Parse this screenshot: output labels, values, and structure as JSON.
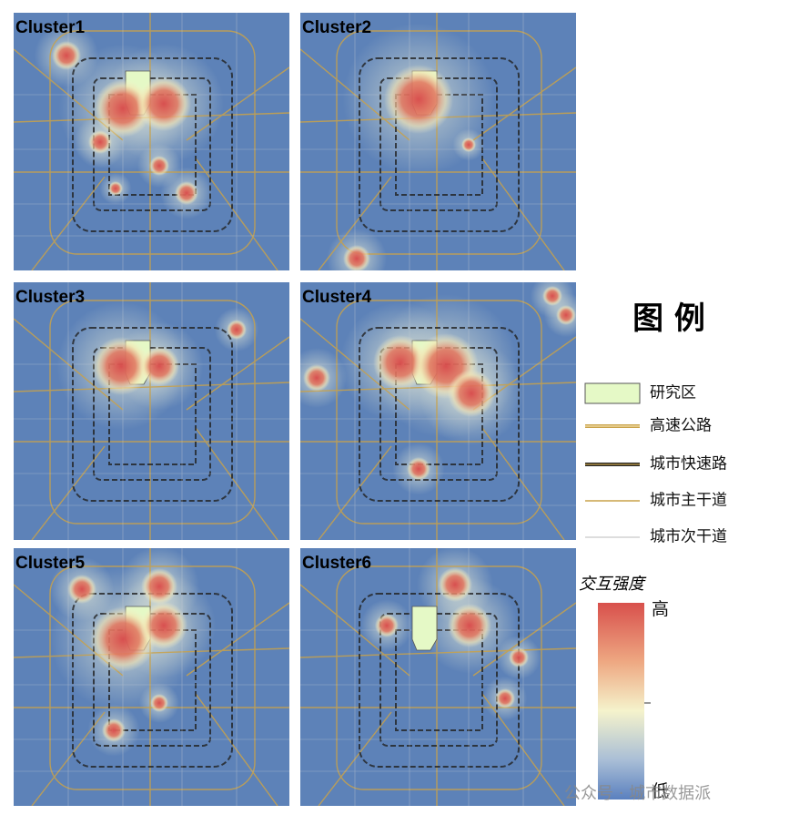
{
  "panels": [
    {
      "title": "Cluster1"
    },
    {
      "title": "Cluster2"
    },
    {
      "title": "Cluster3"
    },
    {
      "title": "Cluster4"
    },
    {
      "title": "Cluster5"
    },
    {
      "title": "Cluster6"
    }
  ],
  "legend": {
    "title": "图 例",
    "items": [
      {
        "label": "研究区"
      },
      {
        "label": "高速公路"
      },
      {
        "label": "城市快速路"
      },
      {
        "label": "城市主干道"
      },
      {
        "label": "城市次干道"
      }
    ]
  },
  "colorbar": {
    "title": "交互强度",
    "high": "高",
    "low": "低"
  },
  "watermark": "公众号 · 城市数据派"
}
